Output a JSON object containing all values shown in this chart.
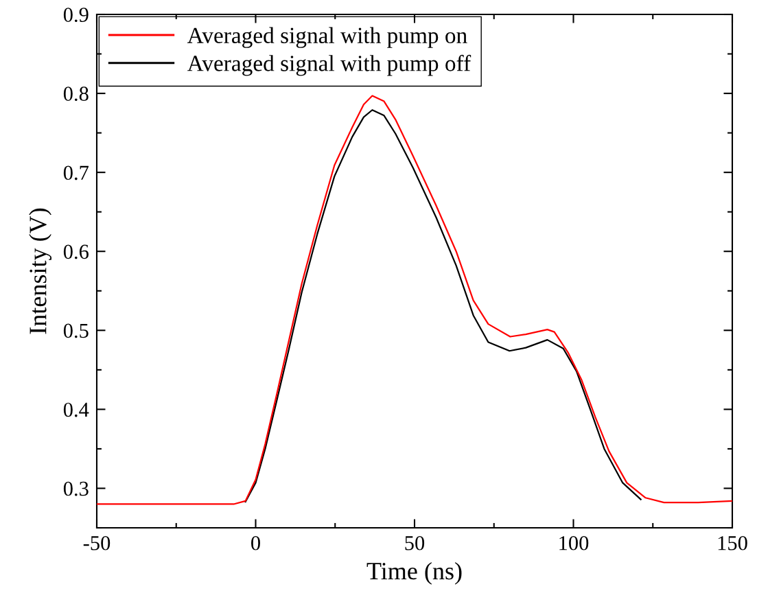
{
  "chart_data": {
    "type": "line",
    "xlabel": "Time (ns)",
    "ylabel": "Intensity (V)",
    "xlim": [
      -50,
      150
    ],
    "xticks": [
      -50,
      0,
      50,
      100,
      150
    ],
    "ylim": [
      0.25,
      0.9
    ],
    "yticks": [
      0.3,
      0.4,
      0.5,
      0.6,
      0.7,
      0.8,
      0.9
    ],
    "grid": false,
    "legend": "top left",
    "marker": "none",
    "line_style": "solid",
    "series": [
      {
        "name": "Averaged signal with pump on",
        "color": "#ff0000",
        "x": [
          -50,
          -30,
          -10,
          -6.9,
          -3.2,
          0,
          3,
          6.7,
          10.4,
          14.5,
          19.4,
          24.8,
          30.4,
          34,
          36.7,
          40.4,
          44,
          49.5,
          56.8,
          63.1,
          68.5,
          73.2,
          80.1,
          85,
          91.8,
          94,
          98.3,
          102.6,
          106.9,
          111.2,
          116.8,
          122.7,
          128.5,
          139.3,
          150
        ],
        "values": [
          0.28,
          0.28,
          0.28,
          0.28,
          0.284,
          0.311,
          0.356,
          0.42,
          0.486,
          0.559,
          0.633,
          0.709,
          0.757,
          0.786,
          0.797,
          0.79,
          0.767,
          0.721,
          0.658,
          0.6,
          0.538,
          0.508,
          0.492,
          0.495,
          0.501,
          0.498,
          0.472,
          0.437,
          0.39,
          0.347,
          0.307,
          0.288,
          0.282,
          0.282,
          0.284
        ]
      },
      {
        "name": "Averaged signal with pump off",
        "color": "#000000",
        "x": [
          -3.2,
          0,
          3,
          6.7,
          10.4,
          14.5,
          19.4,
          24.8,
          30.4,
          34,
          36.7,
          40.4,
          44,
          49.5,
          56.8,
          63.1,
          68.5,
          73.2,
          79.9,
          85,
          91.8,
          96.8,
          101,
          105.4,
          109.7,
          115.5,
          121.2
        ],
        "values": [
          0.283,
          0.307,
          0.35,
          0.412,
          0.475,
          0.548,
          0.622,
          0.695,
          0.745,
          0.77,
          0.779,
          0.772,
          0.749,
          0.706,
          0.643,
          0.582,
          0.519,
          0.485,
          0.474,
          0.478,
          0.488,
          0.477,
          0.448,
          0.399,
          0.35,
          0.307,
          0.286
        ]
      }
    ]
  }
}
